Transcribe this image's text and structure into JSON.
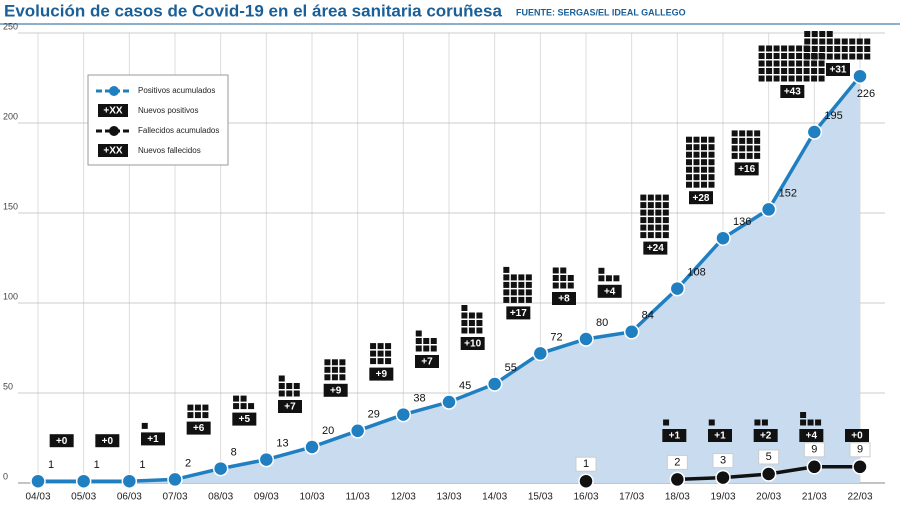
{
  "chart_data": {
    "type": "line",
    "title": "Evolución de casos de Covid-19 en el área sanitaria coruñesa",
    "source": "FUENTE: SERGAS/EL IDEAL GALLEGO",
    "categories": [
      "04/03",
      "05/03",
      "06/03",
      "07/03",
      "08/03",
      "09/03",
      "10/03",
      "11/03",
      "12/03",
      "13/03",
      "14/03",
      "15/03",
      "16/03",
      "17/03",
      "18/03",
      "19/03",
      "20/03",
      "21/03",
      "22/03"
    ],
    "ylim": [
      0,
      250
    ],
    "yticks": [
      0,
      50,
      100,
      150,
      200,
      250
    ],
    "grid": true,
    "legend_marker_label": "+XX",
    "series": [
      {
        "name": "Positivos acumulados",
        "style": "line",
        "color": "#1f7fc0",
        "area_color": "#c9dbef",
        "values": [
          1,
          1,
          1,
          2,
          8,
          13,
          20,
          29,
          38,
          45,
          55,
          72,
          80,
          84,
          108,
          136,
          152,
          195,
          226
        ]
      },
      {
        "name": "Nuevos positivos",
        "style": "blocks",
        "color": "#111111",
        "anchor": 0,
        "values": [
          null,
          0,
          0,
          1,
          6,
          5,
          7,
          9,
          9,
          7,
          10,
          17,
          8,
          4,
          24,
          28,
          16,
          43,
          31
        ],
        "value_labels": [
          null,
          "+0",
          "+0",
          "+1",
          "+6",
          "+5",
          "+7",
          "+9",
          "+9",
          "+7",
          "+10",
          "+17",
          "+8",
          "+4",
          "+24",
          "+28",
          "+16",
          "+43",
          "+31"
        ]
      },
      {
        "name": "Fallecidos acumulados",
        "style": "line",
        "color": "#111111",
        "values": [
          null,
          null,
          null,
          null,
          null,
          null,
          null,
          null,
          null,
          null,
          null,
          null,
          1,
          null,
          2,
          3,
          5,
          9,
          9
        ]
      },
      {
        "name": "Nuevos fallecidos",
        "style": "blocks",
        "color": "#111111",
        "anchor": 2,
        "values": [
          null,
          null,
          null,
          null,
          null,
          null,
          null,
          null,
          null,
          null,
          null,
          null,
          null,
          null,
          1,
          1,
          2,
          4,
          0
        ],
        "value_labels": [
          null,
          null,
          null,
          null,
          null,
          null,
          null,
          null,
          null,
          null,
          null,
          null,
          null,
          null,
          "+1",
          "+1",
          "+2",
          "+4",
          "+0"
        ]
      }
    ]
  }
}
